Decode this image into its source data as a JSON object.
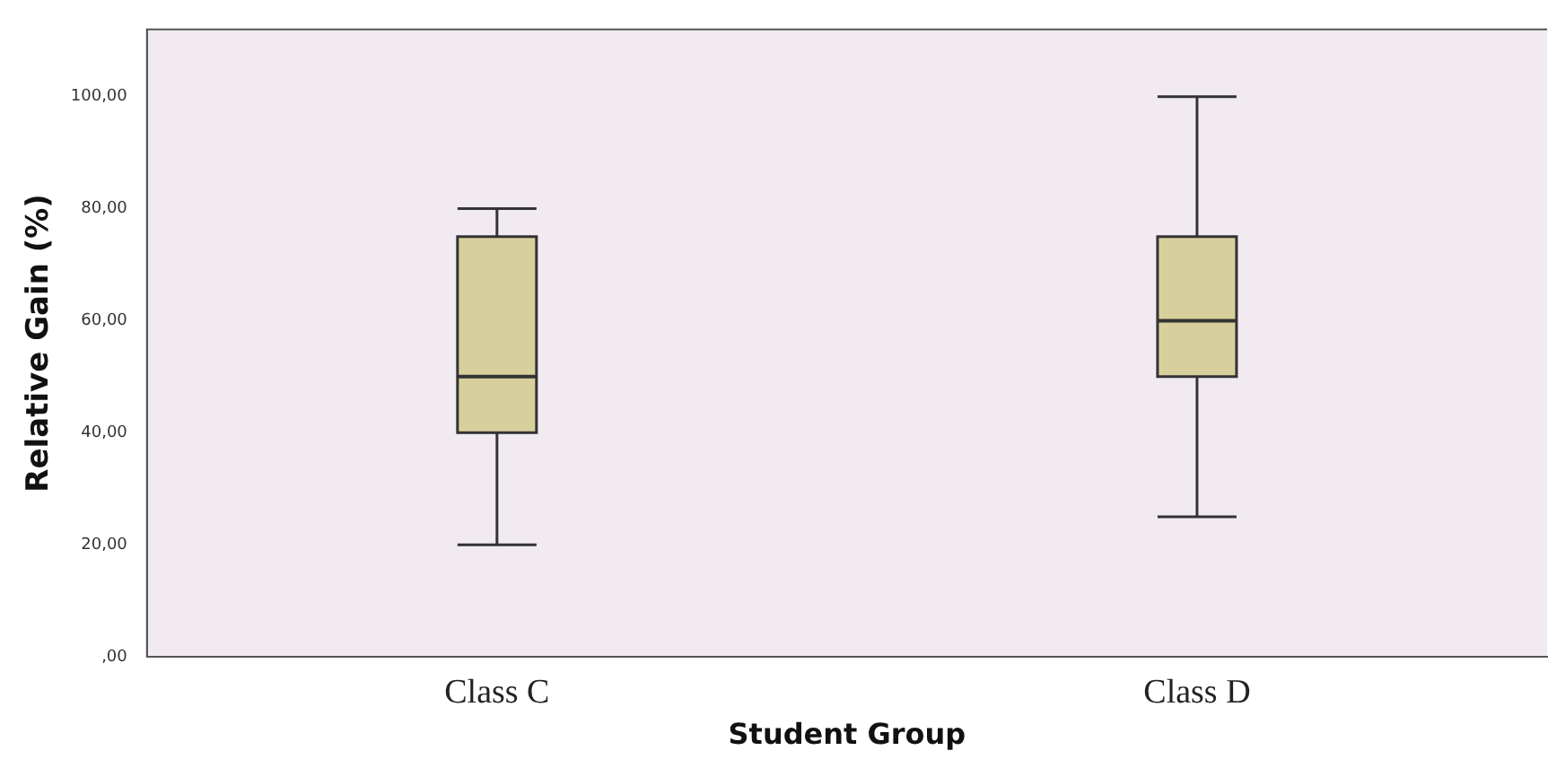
{
  "chart_data": {
    "type": "box",
    "xlabel": "Student Group",
    "ylabel": "Relative Gain (%)",
    "categories": [
      "Class C",
      "Class D"
    ],
    "boxes": [
      {
        "low": 20,
        "q1": 40,
        "median": 50,
        "q3": 75,
        "high": 80
      },
      {
        "low": 25,
        "q1": 50,
        "median": 60,
        "q3": 75,
        "high": 100
      }
    ],
    "color": "#d8d09c",
    "ylim": [
      0,
      112
    ],
    "yticks": [
      {
        "value": 0,
        "label": ",00"
      },
      {
        "value": 20,
        "label": "20,00"
      },
      {
        "value": 40,
        "label": "40,00"
      },
      {
        "value": 60,
        "label": "60,00"
      },
      {
        "value": 80,
        "label": "80,00"
      },
      {
        "value": 100,
        "label": "100,00"
      }
    ],
    "grid": false,
    "legend": false
  }
}
